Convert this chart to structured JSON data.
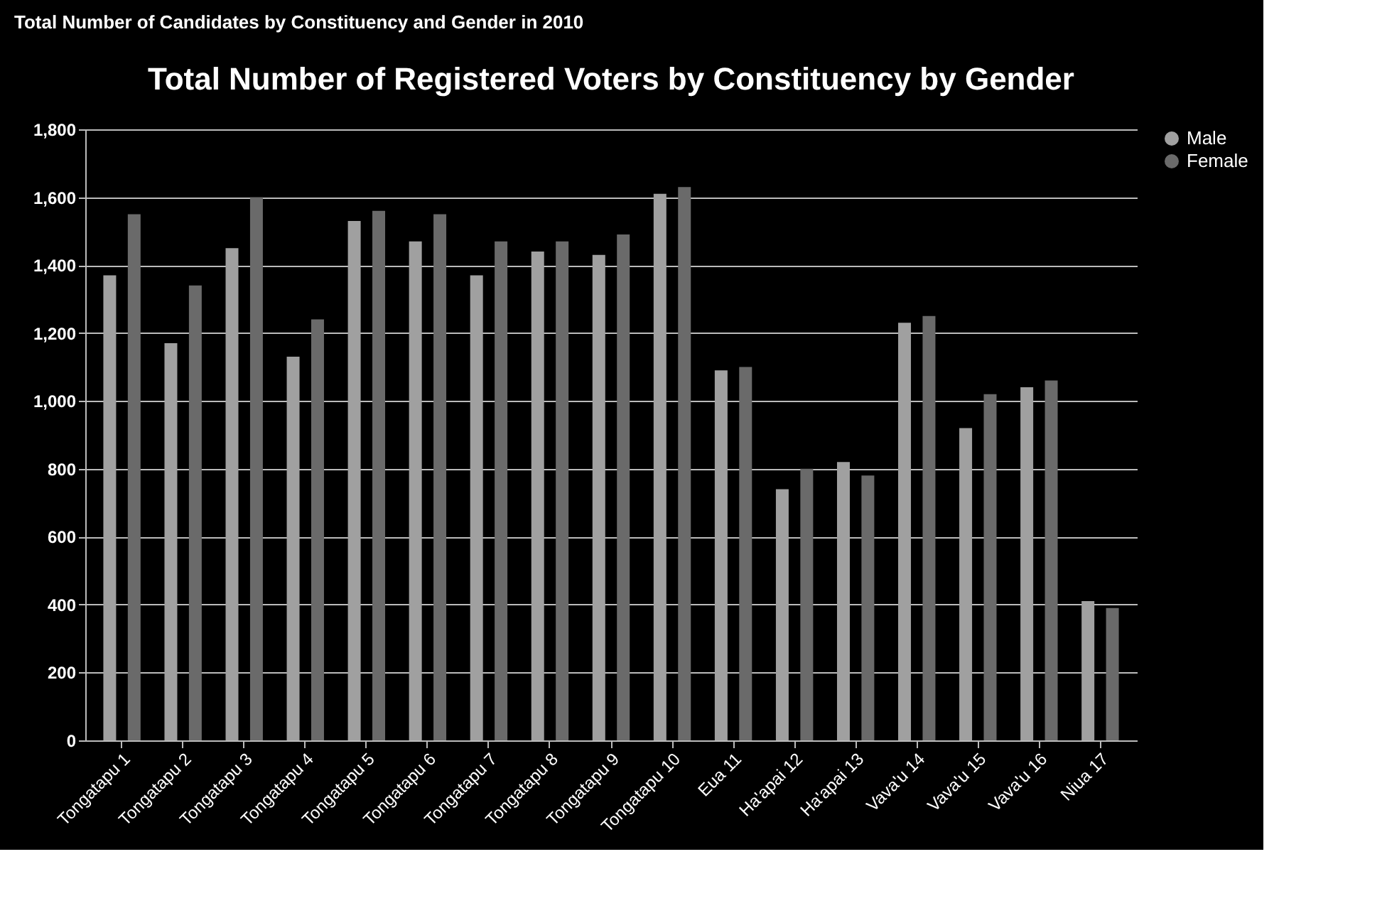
{
  "chart_data": {
    "type": "bar",
    "title": "Total Number of Registered Voters by Constituency by Gender",
    "annotations": [
      "Total Number of Candidates by Constituency and Gender in 2010"
    ],
    "categories": [
      "Tongatapu 1",
      "Tongatapu 2",
      "Tongatapu 3",
      "Tongatapu 4",
      "Tongatapu 5",
      "Tongatapu 6",
      "Tongatapu 7",
      "Tongatapu 8",
      "Tongatapu 9",
      "Tongatapu 10",
      "Eua 11",
      "Ha'apai 12",
      "Ha'apai 13",
      "Vava'u 14",
      "Vava'u 15",
      "Vava'u 16",
      "Niua 17"
    ],
    "series": [
      {
        "name": "Male",
        "color": "#a0a0a0",
        "values": [
          1370,
          1170,
          1450,
          1130,
          1530,
          1470,
          1370,
          1440,
          1430,
          1610,
          1090,
          740,
          820,
          1230,
          920,
          1040,
          410
        ]
      },
      {
        "name": "Female",
        "color": "#6a6a6a",
        "values": [
          1550,
          1340,
          1600,
          1240,
          1560,
          1550,
          1470,
          1470,
          1490,
          1630,
          1100,
          800,
          780,
          1250,
          1020,
          1060,
          390
        ]
      }
    ],
    "ylim": [
      0,
      1800
    ],
    "yticks": [
      0,
      200,
      400,
      600,
      800,
      {
        "value": 1000,
        "label": "1,000"
      },
      {
        "value": 1200,
        "label": "1,200"
      },
      {
        "value": 1400,
        "label": "1,400"
      },
      {
        "value": 1600,
        "label": "1,600"
      },
      {
        "value": 1800,
        "label": "1,800"
      }
    ],
    "grid": "y",
    "legend": "right"
  }
}
